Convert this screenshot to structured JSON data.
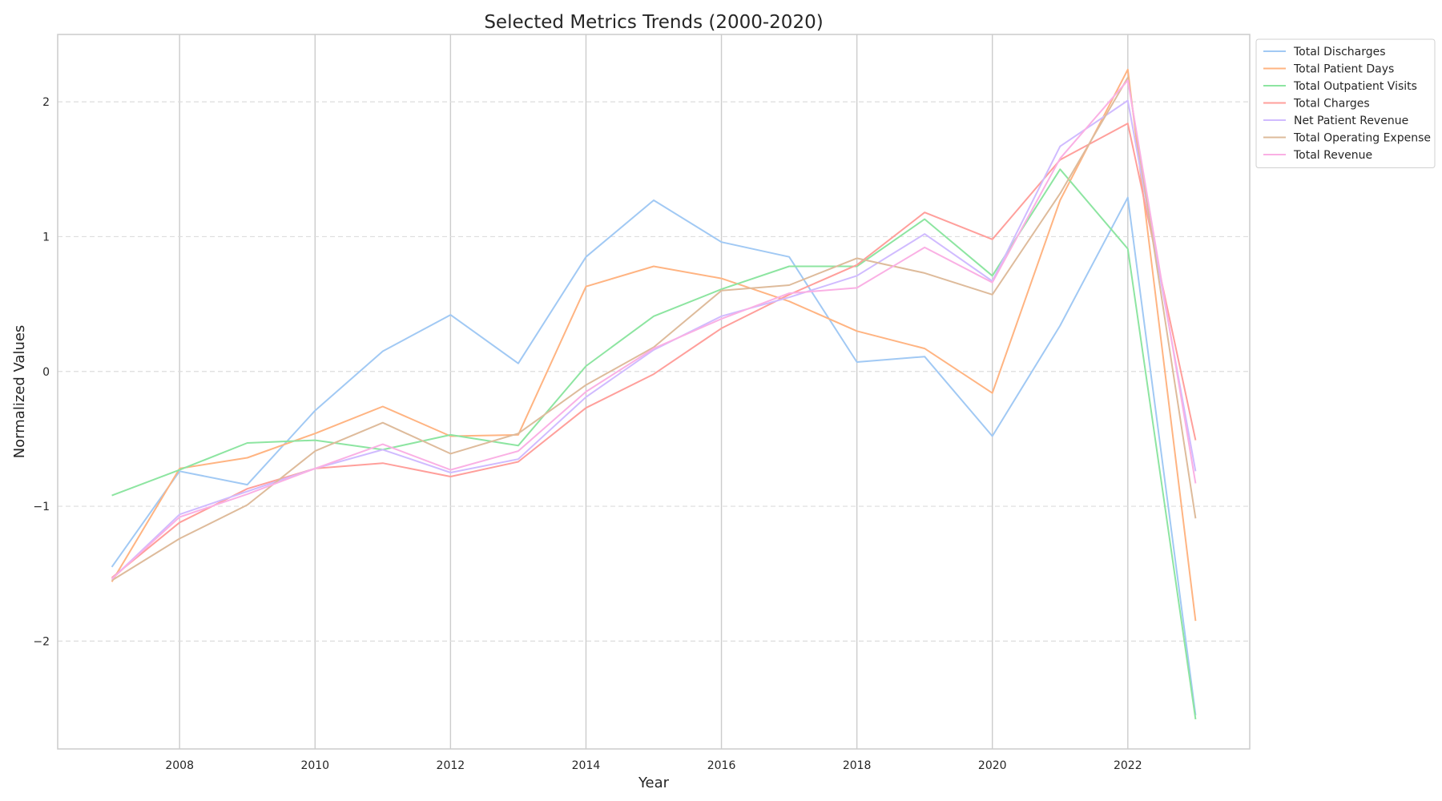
{
  "chart_data": {
    "type": "line",
    "title": "Selected Metrics Trends (2000-2020)",
    "xlabel": "Year",
    "ylabel": "Normalized Values",
    "x": [
      2007,
      2008,
      2009,
      2010,
      2011,
      2012,
      2013,
      2014,
      2015,
      2016,
      2017,
      2018,
      2019,
      2020,
      2021,
      2022,
      2023
    ],
    "xlim": [
      2006.2,
      2023.8
    ],
    "ylim": [
      -2.8,
      2.5
    ],
    "xticks": [
      2008,
      2010,
      2012,
      2014,
      2016,
      2018,
      2020,
      2022
    ],
    "xtick_labels": [
      "2008",
      "2010",
      "2012",
      "2014",
      "2016",
      "2018",
      "2020",
      "2022"
    ],
    "yticks": [
      -2,
      -1,
      0,
      1,
      2
    ],
    "ytick_labels": [
      "−2",
      "−1",
      "0",
      "1",
      "2"
    ],
    "grid": {
      "x": "solid",
      "y": "dashed"
    },
    "legend_position": "upper right, outside",
    "series": [
      {
        "name": "Total Discharges",
        "color": "#a1c9f4",
        "values": [
          -1.45,
          -0.74,
          -0.84,
          -0.29,
          0.15,
          0.42,
          0.06,
          0.85,
          1.27,
          0.96,
          0.85,
          0.07,
          0.11,
          -0.48,
          0.34,
          1.29,
          -2.55
        ]
      },
      {
        "name": "Total Patient Days",
        "color": "#ffb482",
        "values": [
          -1.56,
          -0.72,
          -0.64,
          -0.46,
          -0.26,
          -0.48,
          -0.47,
          0.63,
          0.78,
          0.69,
          0.52,
          0.3,
          0.17,
          -0.16,
          1.27,
          2.24,
          -1.85
        ]
      },
      {
        "name": "Total Outpatient Visits",
        "color": "#8de5a1",
        "values": [
          -0.92,
          -0.73,
          -0.53,
          -0.51,
          -0.58,
          -0.47,
          -0.55,
          0.04,
          0.41,
          0.61,
          0.78,
          0.78,
          1.13,
          0.71,
          1.5,
          0.91,
          -2.58
        ]
      },
      {
        "name": "Total Charges",
        "color": "#ff9f9b",
        "values": [
          -1.53,
          -1.12,
          -0.87,
          -0.72,
          -0.68,
          -0.78,
          -0.67,
          -0.27,
          -0.02,
          0.32,
          0.57,
          0.79,
          1.18,
          0.98,
          1.57,
          1.84,
          -0.51
        ]
      },
      {
        "name": "Net Patient Revenue",
        "color": "#d0bbff",
        "values": [
          -1.54,
          -1.06,
          -0.89,
          -0.72,
          -0.58,
          -0.75,
          -0.65,
          -0.19,
          0.16,
          0.41,
          0.55,
          0.71,
          1.02,
          0.67,
          1.67,
          2.01,
          -0.74
        ]
      },
      {
        "name": "Total Operating Expense",
        "color": "#debb9b",
        "values": [
          -1.55,
          -1.24,
          -0.99,
          -0.59,
          -0.38,
          -0.61,
          -0.46,
          -0.1,
          0.18,
          0.6,
          0.64,
          0.84,
          0.73,
          0.57,
          1.32,
          2.18,
          -1.09
        ]
      },
      {
        "name": "Total Revenue",
        "color": "#fab0e4",
        "values": [
          -1.54,
          -1.08,
          -0.91,
          -0.72,
          -0.54,
          -0.73,
          -0.59,
          -0.15,
          0.17,
          0.39,
          0.58,
          0.62,
          0.92,
          0.66,
          1.58,
          2.16,
          -0.83
        ]
      }
    ]
  }
}
